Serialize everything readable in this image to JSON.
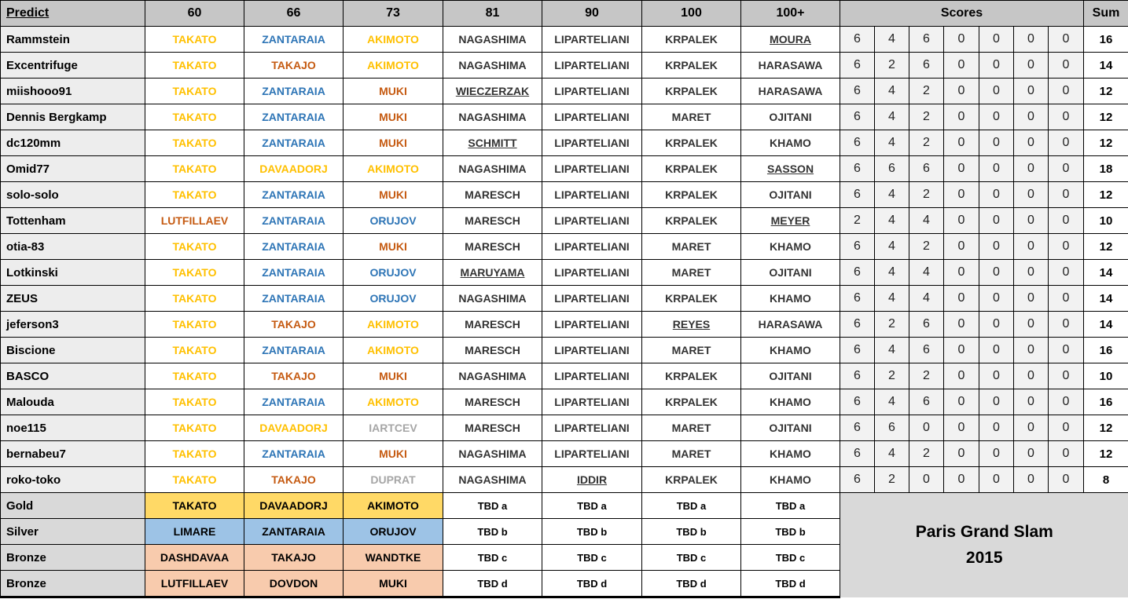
{
  "header": {
    "predict": "Predict",
    "weights": [
      "60",
      "66",
      "73",
      "81",
      "90",
      "100",
      "100+"
    ],
    "scores": "Scores",
    "sum": "Sum"
  },
  "title": {
    "line1": "Paris Grand Slam",
    "line2": "2015"
  },
  "colors": {
    "gold_text": "#FFC000",
    "blue_text": "#2E75B6",
    "orange_text": "#C55A11",
    "gray_text": "#A6A6A6",
    "gold_fill": "#FFD966",
    "silver_fill": "#9DC3E6",
    "bronze_fill": "#F8CBAD",
    "header_fill": "#C6C6C6",
    "label_fill": "#D9D9D9"
  },
  "rows": [
    {
      "name": "Rammstein",
      "picks": [
        {
          "t": "TAKATO",
          "c": "gold"
        },
        {
          "t": "ZANTARAIA",
          "c": "blue"
        },
        {
          "t": "AKIMOTO",
          "c": "gold"
        },
        {
          "t": "NAGASHIMA",
          "c": "dark"
        },
        {
          "t": "LIPARTELIANI",
          "c": "dark"
        },
        {
          "t": "KRPALEK",
          "c": "dark"
        },
        {
          "t": "MOURA",
          "c": "dark",
          "u": true
        }
      ],
      "scores": [
        6,
        4,
        6,
        0,
        0,
        0,
        0
      ],
      "sum": 16
    },
    {
      "name": "Excentrifuge",
      "picks": [
        {
          "t": "TAKATO",
          "c": "gold"
        },
        {
          "t": "TAKAJO",
          "c": "orange"
        },
        {
          "t": "AKIMOTO",
          "c": "gold"
        },
        {
          "t": "NAGASHIMA",
          "c": "dark"
        },
        {
          "t": "LIPARTELIANI",
          "c": "dark"
        },
        {
          "t": "KRPALEK",
          "c": "dark"
        },
        {
          "t": "HARASAWA",
          "c": "dark"
        }
      ],
      "scores": [
        6,
        2,
        6,
        0,
        0,
        0,
        0
      ],
      "sum": 14
    },
    {
      "name": "miishooo91",
      "picks": [
        {
          "t": "TAKATO",
          "c": "gold"
        },
        {
          "t": "ZANTARAIA",
          "c": "blue"
        },
        {
          "t": "MUKI",
          "c": "orange"
        },
        {
          "t": "WIECZERZAK",
          "c": "dark",
          "u": true
        },
        {
          "t": "LIPARTELIANI",
          "c": "dark"
        },
        {
          "t": "KRPALEK",
          "c": "dark"
        },
        {
          "t": "HARASAWA",
          "c": "dark"
        }
      ],
      "scores": [
        6,
        4,
        2,
        0,
        0,
        0,
        0
      ],
      "sum": 12
    },
    {
      "name": "Dennis Bergkamp",
      "picks": [
        {
          "t": "TAKATO",
          "c": "gold"
        },
        {
          "t": "ZANTARAIA",
          "c": "blue"
        },
        {
          "t": "MUKI",
          "c": "orange"
        },
        {
          "t": "NAGASHIMA",
          "c": "dark"
        },
        {
          "t": "LIPARTELIANI",
          "c": "dark"
        },
        {
          "t": "MARET",
          "c": "dark"
        },
        {
          "t": "OJITANI",
          "c": "dark"
        }
      ],
      "scores": [
        6,
        4,
        2,
        0,
        0,
        0,
        0
      ],
      "sum": 12
    },
    {
      "name": "dc120mm",
      "picks": [
        {
          "t": "TAKATO",
          "c": "gold"
        },
        {
          "t": "ZANTARAIA",
          "c": "blue"
        },
        {
          "t": "MUKI",
          "c": "orange"
        },
        {
          "t": "SCHMITT",
          "c": "dark",
          "u": true
        },
        {
          "t": "LIPARTELIANI",
          "c": "dark"
        },
        {
          "t": "KRPALEK",
          "c": "dark"
        },
        {
          "t": "KHAMO",
          "c": "dark"
        }
      ],
      "scores": [
        6,
        4,
        2,
        0,
        0,
        0,
        0
      ],
      "sum": 12
    },
    {
      "name": "Omid77",
      "picks": [
        {
          "t": "TAKATO",
          "c": "gold"
        },
        {
          "t": "DAVAADORJ",
          "c": "gold"
        },
        {
          "t": "AKIMOTO",
          "c": "gold"
        },
        {
          "t": "NAGASHIMA",
          "c": "dark"
        },
        {
          "t": "LIPARTELIANI",
          "c": "dark"
        },
        {
          "t": "KRPALEK",
          "c": "dark"
        },
        {
          "t": "SASSON",
          "c": "dark",
          "u": true
        }
      ],
      "scores": [
        6,
        6,
        6,
        0,
        0,
        0,
        0
      ],
      "sum": 18
    },
    {
      "name": "solo-solo",
      "picks": [
        {
          "t": "TAKATO",
          "c": "gold"
        },
        {
          "t": "ZANTARAIA",
          "c": "blue"
        },
        {
          "t": "MUKI",
          "c": "orange"
        },
        {
          "t": "MARESCH",
          "c": "dark"
        },
        {
          "t": "LIPARTELIANI",
          "c": "dark"
        },
        {
          "t": "KRPALEK",
          "c": "dark"
        },
        {
          "t": "OJITANI",
          "c": "dark"
        }
      ],
      "scores": [
        6,
        4,
        2,
        0,
        0,
        0,
        0
      ],
      "sum": 12
    },
    {
      "name": "Tottenham",
      "picks": [
        {
          "t": "LUTFILLAEV",
          "c": "orange"
        },
        {
          "t": "ZANTARAIA",
          "c": "blue"
        },
        {
          "t": "ORUJOV",
          "c": "blue"
        },
        {
          "t": "MARESCH",
          "c": "dark"
        },
        {
          "t": "LIPARTELIANI",
          "c": "dark"
        },
        {
          "t": "KRPALEK",
          "c": "dark"
        },
        {
          "t": "MEYER",
          "c": "dark",
          "u": true
        }
      ],
      "scores": [
        2,
        4,
        4,
        0,
        0,
        0,
        0
      ],
      "sum": 10
    },
    {
      "name": "otia-83",
      "picks": [
        {
          "t": "TAKATO",
          "c": "gold"
        },
        {
          "t": "ZANTARAIA",
          "c": "blue"
        },
        {
          "t": "MUKI",
          "c": "orange"
        },
        {
          "t": "MARESCH",
          "c": "dark"
        },
        {
          "t": "LIPARTELIANI",
          "c": "dark"
        },
        {
          "t": "MARET",
          "c": "dark"
        },
        {
          "t": "KHAMO",
          "c": "dark"
        }
      ],
      "scores": [
        6,
        4,
        2,
        0,
        0,
        0,
        0
      ],
      "sum": 12
    },
    {
      "name": "Lotkinski",
      "picks": [
        {
          "t": "TAKATO",
          "c": "gold"
        },
        {
          "t": "ZANTARAIA",
          "c": "blue"
        },
        {
          "t": "ORUJOV",
          "c": "blue"
        },
        {
          "t": "MARUYAMA",
          "c": "dark",
          "u": true
        },
        {
          "t": "LIPARTELIANI",
          "c": "dark"
        },
        {
          "t": "MARET",
          "c": "dark"
        },
        {
          "t": "OJITANI",
          "c": "dark"
        }
      ],
      "scores": [
        6,
        4,
        4,
        0,
        0,
        0,
        0
      ],
      "sum": 14
    },
    {
      "name": "ZEUS",
      "picks": [
        {
          "t": "TAKATO",
          "c": "gold"
        },
        {
          "t": "ZANTARAIA",
          "c": "blue"
        },
        {
          "t": "ORUJOV",
          "c": "blue"
        },
        {
          "t": "NAGASHIMA",
          "c": "dark"
        },
        {
          "t": "LIPARTELIANI",
          "c": "dark"
        },
        {
          "t": "KRPALEK",
          "c": "dark"
        },
        {
          "t": "KHAMO",
          "c": "dark"
        }
      ],
      "scores": [
        6,
        4,
        4,
        0,
        0,
        0,
        0
      ],
      "sum": 14
    },
    {
      "name": "jeferson3",
      "picks": [
        {
          "t": "TAKATO",
          "c": "gold"
        },
        {
          "t": "TAKAJO",
          "c": "orange"
        },
        {
          "t": "AKIMOTO",
          "c": "gold"
        },
        {
          "t": "MARESCH",
          "c": "dark"
        },
        {
          "t": "LIPARTELIANI",
          "c": "dark"
        },
        {
          "t": "REYES",
          "c": "dark",
          "u": true
        },
        {
          "t": "HARASAWA",
          "c": "dark"
        }
      ],
      "scores": [
        6,
        2,
        6,
        0,
        0,
        0,
        0
      ],
      "sum": 14
    },
    {
      "name": "Biscione",
      "picks": [
        {
          "t": "TAKATO",
          "c": "gold"
        },
        {
          "t": "ZANTARAIA",
          "c": "blue"
        },
        {
          "t": "AKIMOTO",
          "c": "gold"
        },
        {
          "t": "MARESCH",
          "c": "dark"
        },
        {
          "t": "LIPARTELIANI",
          "c": "dark"
        },
        {
          "t": "MARET",
          "c": "dark"
        },
        {
          "t": "KHAMO",
          "c": "dark"
        }
      ],
      "scores": [
        6,
        4,
        6,
        0,
        0,
        0,
        0
      ],
      "sum": 16
    },
    {
      "name": "BASCO",
      "picks": [
        {
          "t": "TAKATO",
          "c": "gold"
        },
        {
          "t": "TAKAJO",
          "c": "orange"
        },
        {
          "t": "MUKI",
          "c": "orange"
        },
        {
          "t": "NAGASHIMA",
          "c": "dark"
        },
        {
          "t": "LIPARTELIANI",
          "c": "dark"
        },
        {
          "t": "KRPALEK",
          "c": "dark"
        },
        {
          "t": "OJITANI",
          "c": "dark"
        }
      ],
      "scores": [
        6,
        2,
        2,
        0,
        0,
        0,
        0
      ],
      "sum": 10
    },
    {
      "name": "Malouda",
      "picks": [
        {
          "t": "TAKATO",
          "c": "gold"
        },
        {
          "t": "ZANTARAIA",
          "c": "blue"
        },
        {
          "t": "AKIMOTO",
          "c": "gold"
        },
        {
          "t": "MARESCH",
          "c": "dark"
        },
        {
          "t": "LIPARTELIANI",
          "c": "dark"
        },
        {
          "t": "KRPALEK",
          "c": "dark"
        },
        {
          "t": "KHAMO",
          "c": "dark"
        }
      ],
      "scores": [
        6,
        4,
        6,
        0,
        0,
        0,
        0
      ],
      "sum": 16
    },
    {
      "name": "noe115",
      "picks": [
        {
          "t": "TAKATO",
          "c": "gold"
        },
        {
          "t": "DAVAADORJ",
          "c": "gold"
        },
        {
          "t": "IARTCEV",
          "c": "gray"
        },
        {
          "t": "MARESCH",
          "c": "dark"
        },
        {
          "t": "LIPARTELIANI",
          "c": "dark"
        },
        {
          "t": "MARET",
          "c": "dark"
        },
        {
          "t": "OJITANI",
          "c": "dark"
        }
      ],
      "scores": [
        6,
        6,
        0,
        0,
        0,
        0,
        0
      ],
      "sum": 12
    },
    {
      "name": "bernabeu7",
      "picks": [
        {
          "t": "TAKATO",
          "c": "gold"
        },
        {
          "t": "ZANTARAIA",
          "c": "blue"
        },
        {
          "t": "MUKI",
          "c": "orange"
        },
        {
          "t": "NAGASHIMA",
          "c": "dark"
        },
        {
          "t": "LIPARTELIANI",
          "c": "dark"
        },
        {
          "t": "MARET",
          "c": "dark"
        },
        {
          "t": "KHAMO",
          "c": "dark"
        }
      ],
      "scores": [
        6,
        4,
        2,
        0,
        0,
        0,
        0
      ],
      "sum": 12
    },
    {
      "name": "roko-toko",
      "picks": [
        {
          "t": "TAKATO",
          "c": "gold"
        },
        {
          "t": "TAKAJO",
          "c": "orange"
        },
        {
          "t": "DUPRAT",
          "c": "gray"
        },
        {
          "t": "NAGASHIMA",
          "c": "dark"
        },
        {
          "t": "IDDIR",
          "c": "dark",
          "u": true
        },
        {
          "t": "KRPALEK",
          "c": "dark"
        },
        {
          "t": "KHAMO",
          "c": "dark"
        }
      ],
      "scores": [
        6,
        2,
        0,
        0,
        0,
        0,
        0
      ],
      "sum": 8
    }
  ],
  "medals": [
    {
      "label": "Gold",
      "fill": "gold",
      "picks": [
        "TAKATO",
        "DAVAADORJ",
        "AKIMOTO"
      ],
      "tbd": "TBD a"
    },
    {
      "label": "Silver",
      "fill": "silver",
      "picks": [
        "LIMARE",
        "ZANTARAIA",
        "ORUJOV"
      ],
      "tbd": "TBD b"
    },
    {
      "label": "Bronze",
      "fill": "bronze",
      "picks": [
        "DASHDAVAA",
        "TAKAJO",
        "WANDTKE"
      ],
      "tbd": "TBD c"
    },
    {
      "label": "Bronze",
      "fill": "bronze",
      "picks": [
        "LUTFILLAEV",
        "DOVDON",
        "MUKI"
      ],
      "tbd": "TBD d"
    }
  ]
}
